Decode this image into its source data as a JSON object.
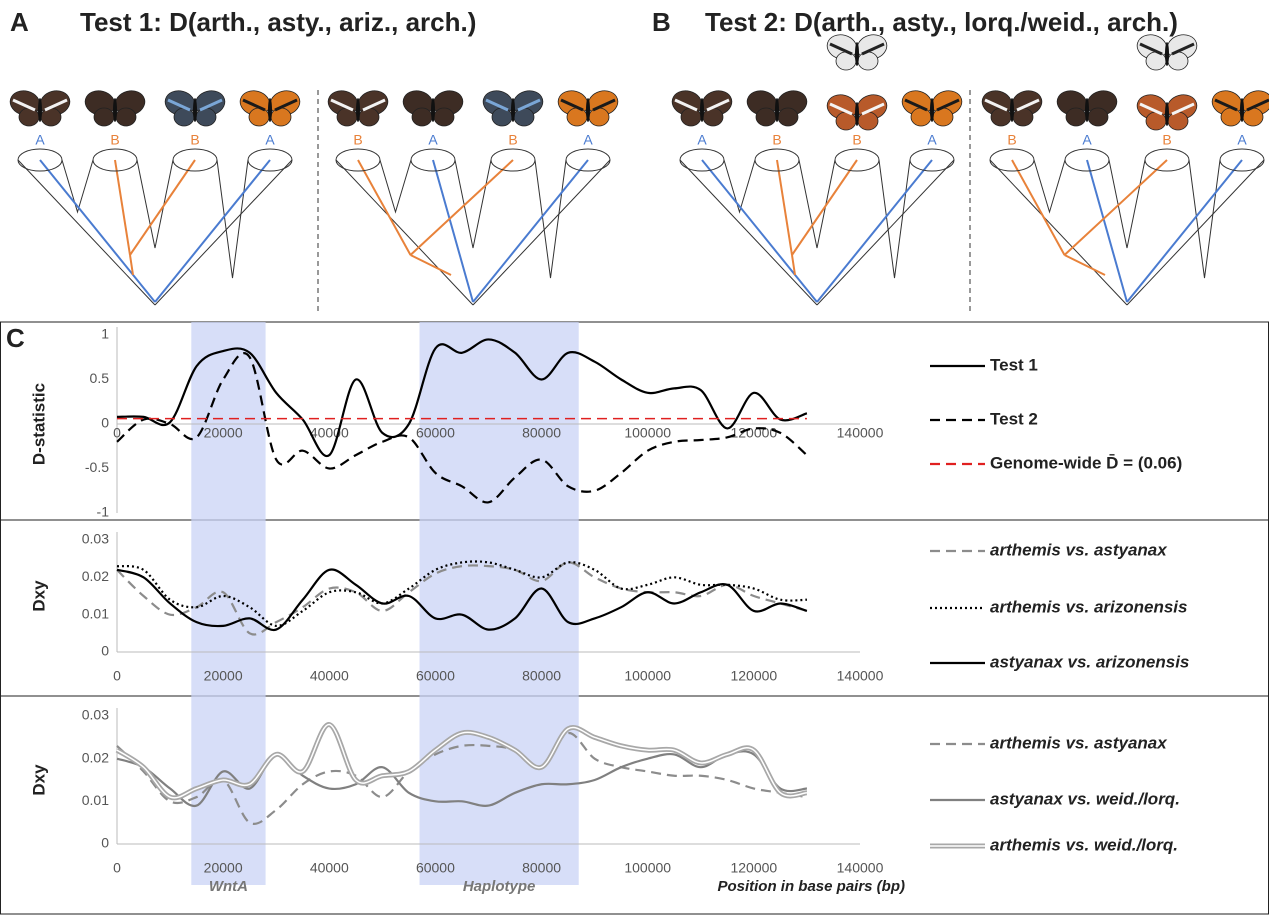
{
  "panel_a": {
    "letter": "A",
    "title": "Test 1: D(arth., asty., ariz., arch.)",
    "trees": [
      {
        "tips": [
          "A",
          "B",
          "B",
          "A"
        ]
      },
      {
        "tips": [
          "B",
          "A",
          "B",
          "A"
        ]
      }
    ]
  },
  "panel_b": {
    "letter": "B",
    "title": "Test 2: D(arth., asty., lorq./weid., arch.)",
    "trees": [
      {
        "tips": [
          "A",
          "B",
          "B",
          "A"
        ]
      },
      {
        "tips": [
          "B",
          "A",
          "B",
          "A"
        ]
      }
    ]
  },
  "panel_c": {
    "letter": "C"
  },
  "highlights": [
    {
      "x0": 14000,
      "x1": 28000,
      "label": "WntA"
    },
    {
      "x0": 57000,
      "x1": 87000,
      "label": "Haplotype"
    }
  ],
  "chart_data": [
    {
      "type": "line",
      "ylabel": "D-statistic",
      "ylim": [
        -1,
        1
      ],
      "yticks": [
        -1,
        -0.5,
        0,
        0.5,
        1
      ],
      "xlim": [
        0,
        140000
      ],
      "xticks": [
        0,
        20000,
        40000,
        60000,
        80000,
        100000,
        120000,
        140000
      ],
      "grid": false,
      "x": [
        0,
        5000,
        10000,
        15000,
        20000,
        25000,
        30000,
        35000,
        40000,
        45000,
        50000,
        55000,
        60000,
        65000,
        70000,
        75000,
        80000,
        85000,
        90000,
        95000,
        100000,
        105000,
        110000,
        115000,
        120000,
        125000,
        130000
      ],
      "series": [
        {
          "name": "Test 1",
          "color": "#000000",
          "dash": "solid",
          "values": [
            0.08,
            0.08,
            0.02,
            0.65,
            0.82,
            0.8,
            0.35,
            0.05,
            -0.35,
            0.5,
            -0.1,
            0.0,
            0.85,
            0.8,
            0.95,
            0.8,
            0.5,
            0.8,
            0.7,
            0.5,
            0.35,
            0.4,
            0.38,
            -0.05,
            0.35,
            0.05,
            0.12
          ]
        },
        {
          "name": "Test 2",
          "color": "#000000",
          "dash": "dashed",
          "values": [
            -0.2,
            0.05,
            0.0,
            -0.15,
            0.5,
            0.75,
            -0.4,
            -0.3,
            -0.5,
            -0.35,
            -0.2,
            -0.15,
            -0.55,
            -0.7,
            -0.88,
            -0.6,
            -0.4,
            -0.7,
            -0.75,
            -0.55,
            -0.3,
            -0.2,
            -0.18,
            -0.15,
            -0.05,
            -0.1,
            -0.35
          ]
        },
        {
          "name": "Genome-wide D̄ = (0.06)",
          "color": "#e02020",
          "dash": "dashed",
          "x": [
            0,
            130000
          ],
          "values": [
            0.06,
            0.06
          ]
        }
      ]
    },
    {
      "type": "line",
      "ylabel": "Dxy",
      "ylim": [
        0,
        0.03
      ],
      "yticks": [
        0,
        0.01,
        0.02,
        0.03
      ],
      "xlim": [
        0,
        140000
      ],
      "xticks": [
        0,
        20000,
        40000,
        60000,
        80000,
        100000,
        120000,
        140000
      ],
      "grid": false,
      "x": [
        0,
        5000,
        10000,
        15000,
        20000,
        25000,
        30000,
        35000,
        40000,
        45000,
        50000,
        55000,
        60000,
        65000,
        70000,
        75000,
        80000,
        85000,
        90000,
        95000,
        100000,
        105000,
        110000,
        115000,
        120000,
        125000,
        130000
      ],
      "series": [
        {
          "name": "arthemis vs. astyanax",
          "color": "#8c8c8c",
          "dash": "dashed",
          "values": [
            0.022,
            0.015,
            0.01,
            0.012,
            0.016,
            0.005,
            0.008,
            0.012,
            0.017,
            0.016,
            0.011,
            0.016,
            0.021,
            0.023,
            0.023,
            0.022,
            0.019,
            0.024,
            0.02,
            0.017,
            0.016,
            0.016,
            0.015,
            0.018,
            0.015,
            0.013,
            0.011
          ]
        },
        {
          "name": "arthemis vs. arizonensis",
          "color": "#000000",
          "dash": "dotted",
          "values": [
            0.023,
            0.022,
            0.014,
            0.012,
            0.015,
            0.012,
            0.007,
            0.011,
            0.016,
            0.016,
            0.013,
            0.017,
            0.022,
            0.024,
            0.024,
            0.022,
            0.02,
            0.024,
            0.022,
            0.017,
            0.018,
            0.02,
            0.018,
            0.018,
            0.017,
            0.014,
            0.014
          ]
        },
        {
          "name": "astyanax vs. arizonensis",
          "color": "#000000",
          "dash": "solid",
          "values": [
            0.022,
            0.02,
            0.013,
            0.008,
            0.007,
            0.009,
            0.006,
            0.014,
            0.022,
            0.018,
            0.013,
            0.015,
            0.009,
            0.01,
            0.006,
            0.009,
            0.017,
            0.008,
            0.009,
            0.012,
            0.016,
            0.013,
            0.016,
            0.018,
            0.011,
            0.013,
            0.011
          ]
        }
      ]
    },
    {
      "type": "line",
      "ylabel": "Dxy",
      "ylim": [
        0,
        0.03
      ],
      "yticks": [
        0,
        0.01,
        0.02,
        0.03
      ],
      "xlim": [
        0,
        140000
      ],
      "xticks": [
        0,
        20000,
        40000,
        60000,
        80000,
        100000,
        120000,
        140000
      ],
      "grid": false,
      "xlabel": "Position in base pairs (bp)",
      "x": [
        0,
        5000,
        10000,
        15000,
        20000,
        25000,
        30000,
        35000,
        40000,
        45000,
        50000,
        55000,
        60000,
        65000,
        70000,
        75000,
        80000,
        85000,
        90000,
        95000,
        100000,
        105000,
        110000,
        115000,
        120000,
        125000,
        130000
      ],
      "series": [
        {
          "name": "arthemis vs. astyanax",
          "color": "#8c8c8c",
          "dash": "dashed",
          "values": [
            0.023,
            0.017,
            0.01,
            0.011,
            0.015,
            0.005,
            0.008,
            0.014,
            0.017,
            0.016,
            0.011,
            0.017,
            0.021,
            0.023,
            0.023,
            0.022,
            0.018,
            0.026,
            0.02,
            0.018,
            0.017,
            0.016,
            0.016,
            0.015,
            0.013,
            0.012,
            0.011
          ]
        },
        {
          "name": "astyanax vs. weid./lorq.",
          "color": "#808080",
          "dash": "solid",
          "values": [
            0.02,
            0.018,
            0.013,
            0.009,
            0.017,
            0.013,
            0.021,
            0.016,
            0.013,
            0.014,
            0.018,
            0.012,
            0.01,
            0.01,
            0.009,
            0.012,
            0.014,
            0.014,
            0.015,
            0.018,
            0.02,
            0.021,
            0.018,
            0.021,
            0.021,
            0.013,
            0.013
          ]
        },
        {
          "name": "arthemis vs. weid./lorq.",
          "color": "#a8a8a8",
          "dash": "double",
          "values": [
            0.022,
            0.018,
            0.011,
            0.013,
            0.015,
            0.014,
            0.021,
            0.017,
            0.028,
            0.015,
            0.016,
            0.017,
            0.022,
            0.026,
            0.025,
            0.022,
            0.018,
            0.027,
            0.025,
            0.023,
            0.022,
            0.022,
            0.019,
            0.021,
            0.022,
            0.012,
            0.012
          ]
        }
      ]
    }
  ]
}
